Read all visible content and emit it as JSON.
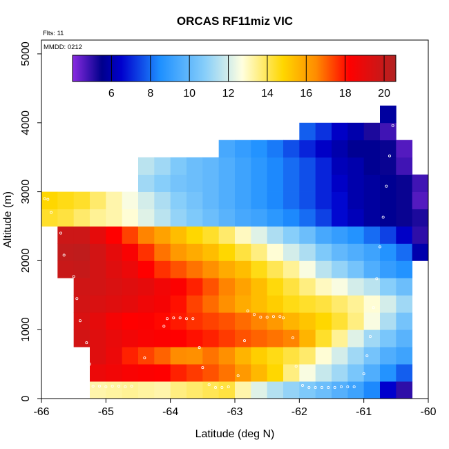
{
  "chart_data": {
    "type": "heatmap",
    "title": "ORCAS RF11miz VIC",
    "xlabel": "Latitude (deg N)",
    "ylabel": "Altitude (m)",
    "xlim": [
      -66,
      -60
    ],
    "ylim": [
      0,
      5200
    ],
    "x_ticks": [
      -66,
      -65,
      -64,
      -63,
      -62,
      -61,
      -60
    ],
    "x_tick_labels": [
      "-66",
      "-65",
      "-64",
      "-63",
      "-62",
      "-61",
      "-60"
    ],
    "y_ticks": [
      0,
      1000,
      2000,
      3000,
      4000,
      5000
    ],
    "y_tick_labels": [
      "0",
      "1000",
      "2000",
      "3000",
      "4000",
      "5000"
    ],
    "annotation_flts": "Flts: 11",
    "annotation_mmdd": "MMDD: 0212",
    "colorbar": {
      "min": 4.0,
      "max": 20.6,
      "ticks": [
        6,
        8,
        10,
        12,
        14,
        16,
        18,
        20
      ],
      "tick_labels": [
        "6",
        "8",
        "10",
        "12",
        "14",
        "16",
        "18",
        "20"
      ],
      "stops": [
        "#8a2be2",
        "#00008b",
        "#0000cd",
        "#1e90ff",
        "#87cefa",
        "#ffffe0",
        "#ffd700",
        "#ff8c00",
        "#ff0000",
        "#b22222"
      ],
      "stop_values": [
        4.0,
        5.5,
        6.5,
        8.5,
        10.8,
        12.7,
        14.8,
        16.5,
        18.2,
        20.6
      ]
    },
    "x_bin_width": 0.25,
    "z_bin_height": 250,
    "rows": [
      {
        "z0": 0,
        "x0": -65.25,
        "values": [
          13.2,
          13.3,
          13.4,
          13.3,
          13.2,
          13.6,
          13.8,
          14.0,
          14.2,
          13.2,
          12.2,
          11.5,
          11.0,
          10.6,
          10.2,
          9.7,
          9.2,
          8.4,
          6.5,
          5.0
        ]
      },
      {
        "z0": 250,
        "x0": -65.25,
        "values": [
          18.8,
          18.6,
          18.4,
          18.3,
          18.2,
          17.8,
          17.5,
          17.2,
          16.8,
          16.2,
          15.5,
          14.8,
          13.6,
          12.6,
          11.8,
          11.2,
          10.5,
          9.6,
          8.6,
          7.8
        ]
      },
      {
        "z0": 500,
        "x0": -65.25,
        "values": [
          19.2,
          18.8,
          17.8,
          17.4,
          17.0,
          16.5,
          16.4,
          16.8,
          16.4,
          15.6,
          15.0,
          14.6,
          14.2,
          13.8,
          12.8,
          12.0,
          11.2,
          10.4,
          9.6,
          9.2
        ]
      },
      {
        "z0": 750,
        "x0": -65.5,
        "values": [
          19.6,
          19.2,
          18.9,
          18.6,
          18.4,
          18.3,
          18.2,
          18.0,
          17.8,
          17.5,
          17.2,
          17.0,
          16.8,
          16.6,
          15.6,
          14.4,
          13.4,
          12.2,
          11.2,
          10.5,
          9.8
        ]
      },
      {
        "z0": 1000,
        "x0": -65.5,
        "values": [
          19.4,
          19.0,
          18.5,
          18.2,
          18.3,
          18.1,
          17.9,
          17.6,
          17.4,
          17.2,
          16.9,
          16.6,
          16.2,
          15.6,
          15.2,
          14.8,
          14.3,
          13.6,
          12.6,
          11.4,
          10.4
        ]
      },
      {
        "z0": 1250,
        "x0": -65.5,
        "values": [
          19.6,
          19.4,
          19.2,
          19.0,
          18.7,
          18.5,
          18.0,
          17.4,
          16.9,
          16.4,
          15.8,
          15.4,
          15.0,
          14.6,
          14.4,
          14.2,
          13.8,
          13.4,
          12.8,
          12.0,
          11.2
        ]
      },
      {
        "z0": 1500,
        "x0": -65.5,
        "values": [
          19.7,
          19.6,
          19.4,
          19.2,
          19.0,
          18.6,
          18.3,
          17.8,
          17.2,
          16.6,
          16.0,
          15.4,
          14.7,
          14.2,
          13.6,
          13.0,
          12.6,
          12.0,
          11.6,
          10.8,
          10.2
        ]
      },
      {
        "z0": 1750,
        "x0": -65.75,
        "values": [
          19.9,
          20.0,
          19.6,
          19.2,
          18.8,
          18.2,
          17.6,
          17.2,
          16.8,
          16.4,
          15.8,
          15.4,
          14.6,
          14.0,
          13.4,
          12.6,
          11.6,
          11.0,
          10.4,
          9.6,
          9.0,
          8.6
        ]
      },
      {
        "z0": 2000,
        "x0": -65.75,
        "values": [
          20.1,
          20.2,
          19.6,
          19.0,
          18.4,
          17.6,
          16.8,
          16.2,
          15.8,
          15.4,
          14.8,
          14.2,
          13.6,
          12.8,
          12.0,
          11.4,
          10.6,
          10.0,
          9.6,
          9.2,
          8.6,
          8.0,
          6.0
        ]
      },
      {
        "z0": 2250,
        "x0": -65.75,
        "values": [
          19.8,
          19.8,
          19.0,
          18.2,
          17.4,
          16.6,
          16.0,
          15.4,
          14.8,
          14.4,
          13.8,
          13.0,
          12.2,
          11.4,
          10.8,
          10.2,
          9.4,
          9.0,
          8.6,
          8.0,
          7.4,
          6.4,
          5.0
        ]
      },
      {
        "z0": 2500,
        "x0": -66.0,
        "values": [
          14.4,
          14.2,
          13.8,
          13.4,
          13.2,
          12.8,
          12.2,
          11.6,
          11.0,
          10.6,
          10.2,
          9.8,
          9.4,
          9.2,
          8.8,
          8.4,
          8.0,
          7.4,
          6.6,
          6.2,
          5.8,
          5.6,
          5.4,
          5.2
        ]
      },
      {
        "z0": 2750,
        "x0": -66.0,
        "values": [
          14.8,
          14.6,
          14.4,
          13.8,
          13.2,
          12.6,
          12.0,
          11.4,
          10.8,
          10.4,
          10.0,
          9.6,
          9.2,
          8.8,
          8.4,
          8.0,
          7.6,
          7.0,
          6.6,
          6.0,
          5.8,
          5.6,
          5.4,
          4.6
        ]
      },
      {
        "z0": 3000,
        "x0": -64.5,
        "values": [
          11.2,
          10.8,
          10.4,
          10.2,
          10.0,
          9.6,
          9.2,
          8.8,
          8.4,
          8.0,
          7.6,
          7.0,
          6.4,
          6.0,
          5.8,
          5.6,
          5.4,
          4.8
        ]
      },
      {
        "z0": 3250,
        "x0": -64.5,
        "values": [
          11.6,
          11.2,
          10.6,
          10.2,
          10.0,
          9.6,
          9.2,
          8.8,
          8.4,
          8.0,
          7.6,
          7.0,
          6.2,
          6.0,
          5.6,
          5.4,
          4.8
        ]
      },
      {
        "z0": 3500,
        "x0": -63.25,
        "values": [
          9.4,
          9.0,
          8.6,
          8.2,
          7.6,
          7.0,
          6.4,
          6.0,
          5.6,
          5.6,
          5.4,
          4.6
        ]
      },
      {
        "z0": 3750,
        "x0": -62.0,
        "values": [
          7.8,
          7.2,
          6.4,
          6.0,
          5.2,
          4.8
        ]
      },
      {
        "z0": 4000,
        "x0": -60.75,
        "values": [
          5.8
        ]
      }
    ],
    "flight_points": [
      [
        -65.95,
        2900
      ],
      [
        -65.9,
        2890
      ],
      [
        -65.85,
        2700
      ],
      [
        -65.7,
        2400
      ],
      [
        -65.65,
        2080
      ],
      [
        -65.5,
        1770
      ],
      [
        -65.45,
        1450
      ],
      [
        -65.4,
        1130
      ],
      [
        -65.3,
        810
      ],
      [
        -65.25,
        500
      ],
      [
        -65.2,
        180
      ],
      [
        -65.1,
        180
      ],
      [
        -65.0,
        170
      ],
      [
        -64.9,
        180
      ],
      [
        -64.8,
        180
      ],
      [
        -64.7,
        170
      ],
      [
        -64.6,
        180
      ],
      [
        -64.4,
        590
      ],
      [
        -64.1,
        1050
      ],
      [
        -64.05,
        1160
      ],
      [
        -63.95,
        1170
      ],
      [
        -63.85,
        1170
      ],
      [
        -63.75,
        1160
      ],
      [
        -63.65,
        1160
      ],
      [
        -63.55,
        740
      ],
      [
        -63.5,
        450
      ],
      [
        -63.4,
        200
      ],
      [
        -63.3,
        160
      ],
      [
        -63.2,
        160
      ],
      [
        -63.1,
        170
      ],
      [
        -62.95,
        330
      ],
      [
        -62.85,
        840
      ],
      [
        -62.8,
        1270
      ],
      [
        -62.7,
        1220
      ],
      [
        -62.6,
        1180
      ],
      [
        -62.5,
        1180
      ],
      [
        -62.4,
        1190
      ],
      [
        -62.3,
        1190
      ],
      [
        -62.25,
        1170
      ],
      [
        -62.1,
        880
      ],
      [
        -62.05,
        470
      ],
      [
        -61.95,
        190
      ],
      [
        -61.85,
        160
      ],
      [
        -61.75,
        160
      ],
      [
        -61.65,
        160
      ],
      [
        -61.55,
        160
      ],
      [
        -61.45,
        160
      ],
      [
        -61.35,
        170
      ],
      [
        -61.25,
        170
      ],
      [
        -61.15,
        170
      ],
      [
        -61.0,
        360
      ],
      [
        -60.95,
        620
      ],
      [
        -60.9,
        900
      ],
      [
        -60.85,
        1320
      ],
      [
        -60.8,
        1740
      ],
      [
        -60.75,
        2200
      ],
      [
        -60.7,
        2630
      ],
      [
        -60.65,
        3080
      ],
      [
        -60.6,
        3520
      ],
      [
        -60.55,
        3960
      ]
    ]
  }
}
